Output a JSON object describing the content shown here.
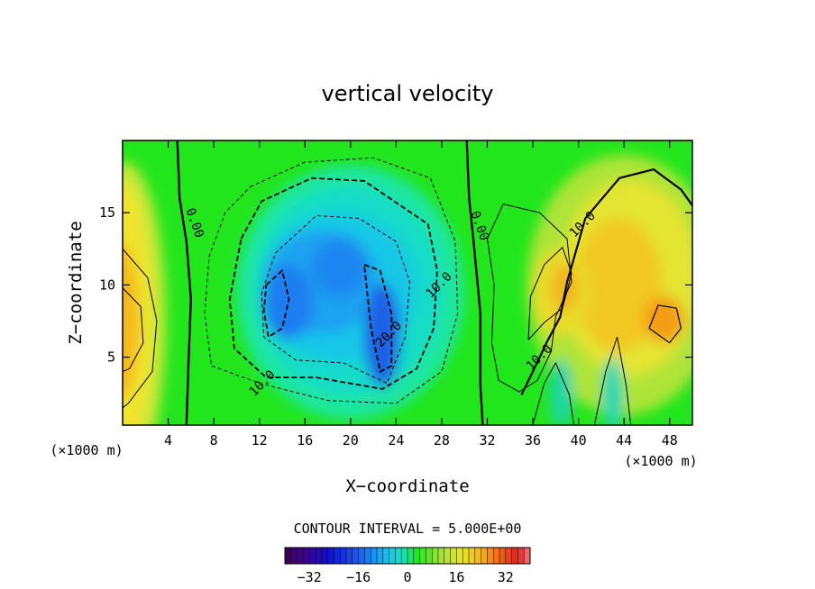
{
  "chart_data": {
    "type": "heatmap",
    "title": "vertical velocity",
    "xlabel": "X−coordinate",
    "ylabel": "Z−coordinate",
    "x_unit": "(×1000 m)",
    "y_unit": "(×1000 m)",
    "xlim": [
      0,
      50
    ],
    "ylim": [
      0.3,
      20
    ],
    "x_ticks": [
      4,
      8,
      12,
      16,
      20,
      24,
      28,
      32,
      36,
      40,
      44,
      48
    ],
    "y_ticks": [
      5,
      10,
      15
    ],
    "contour_interval_text": "CONTOUR INTERVAL = 5.000E+00",
    "contour_interval": 5.0,
    "contour_labels": [
      {
        "text": "0.00",
        "x": 6.0,
        "y": 14.2
      },
      {
        "text": "0.00",
        "x": 31.0,
        "y": 14.0
      },
      {
        "text": "10.0",
        "x": 40.6,
        "y": 14.0
      },
      {
        "text": "10.0",
        "x": 36.8,
        "y": 4.8
      },
      {
        "text": "10.0",
        "x": 28.0,
        "y": 9.8
      },
      {
        "text": "20.0",
        "x": 23.6,
        "y": 6.4
      },
      {
        "text": "10.0",
        "x": 12.5,
        "y": 3.0
      }
    ],
    "field_features": [
      {
        "name": "updraft-left",
        "x": 0.0,
        "y": 7.5,
        "value": 14
      },
      {
        "name": "downdraft-core",
        "x": 17.5,
        "y": 10.0,
        "value": -20
      },
      {
        "name": "downdraft-core-2",
        "x": 22.5,
        "y": 7.0,
        "value": -22
      },
      {
        "name": "updraft-right",
        "x": 47.0,
        "y": 7.5,
        "value": 18
      },
      {
        "name": "updraft-right-upper",
        "x": 43.5,
        "y": 11.0,
        "value": 14
      },
      {
        "name": "updraft-small",
        "x": 39.5,
        "y": 9.5,
        "value": 12
      }
    ],
    "colorbar": {
      "min": -40,
      "max": 40,
      "tick_labels": [
        "−32",
        "−16",
        "0",
        "16",
        "32"
      ],
      "tick_values": [
        -32,
        -16,
        0,
        16,
        32
      ]
    }
  }
}
